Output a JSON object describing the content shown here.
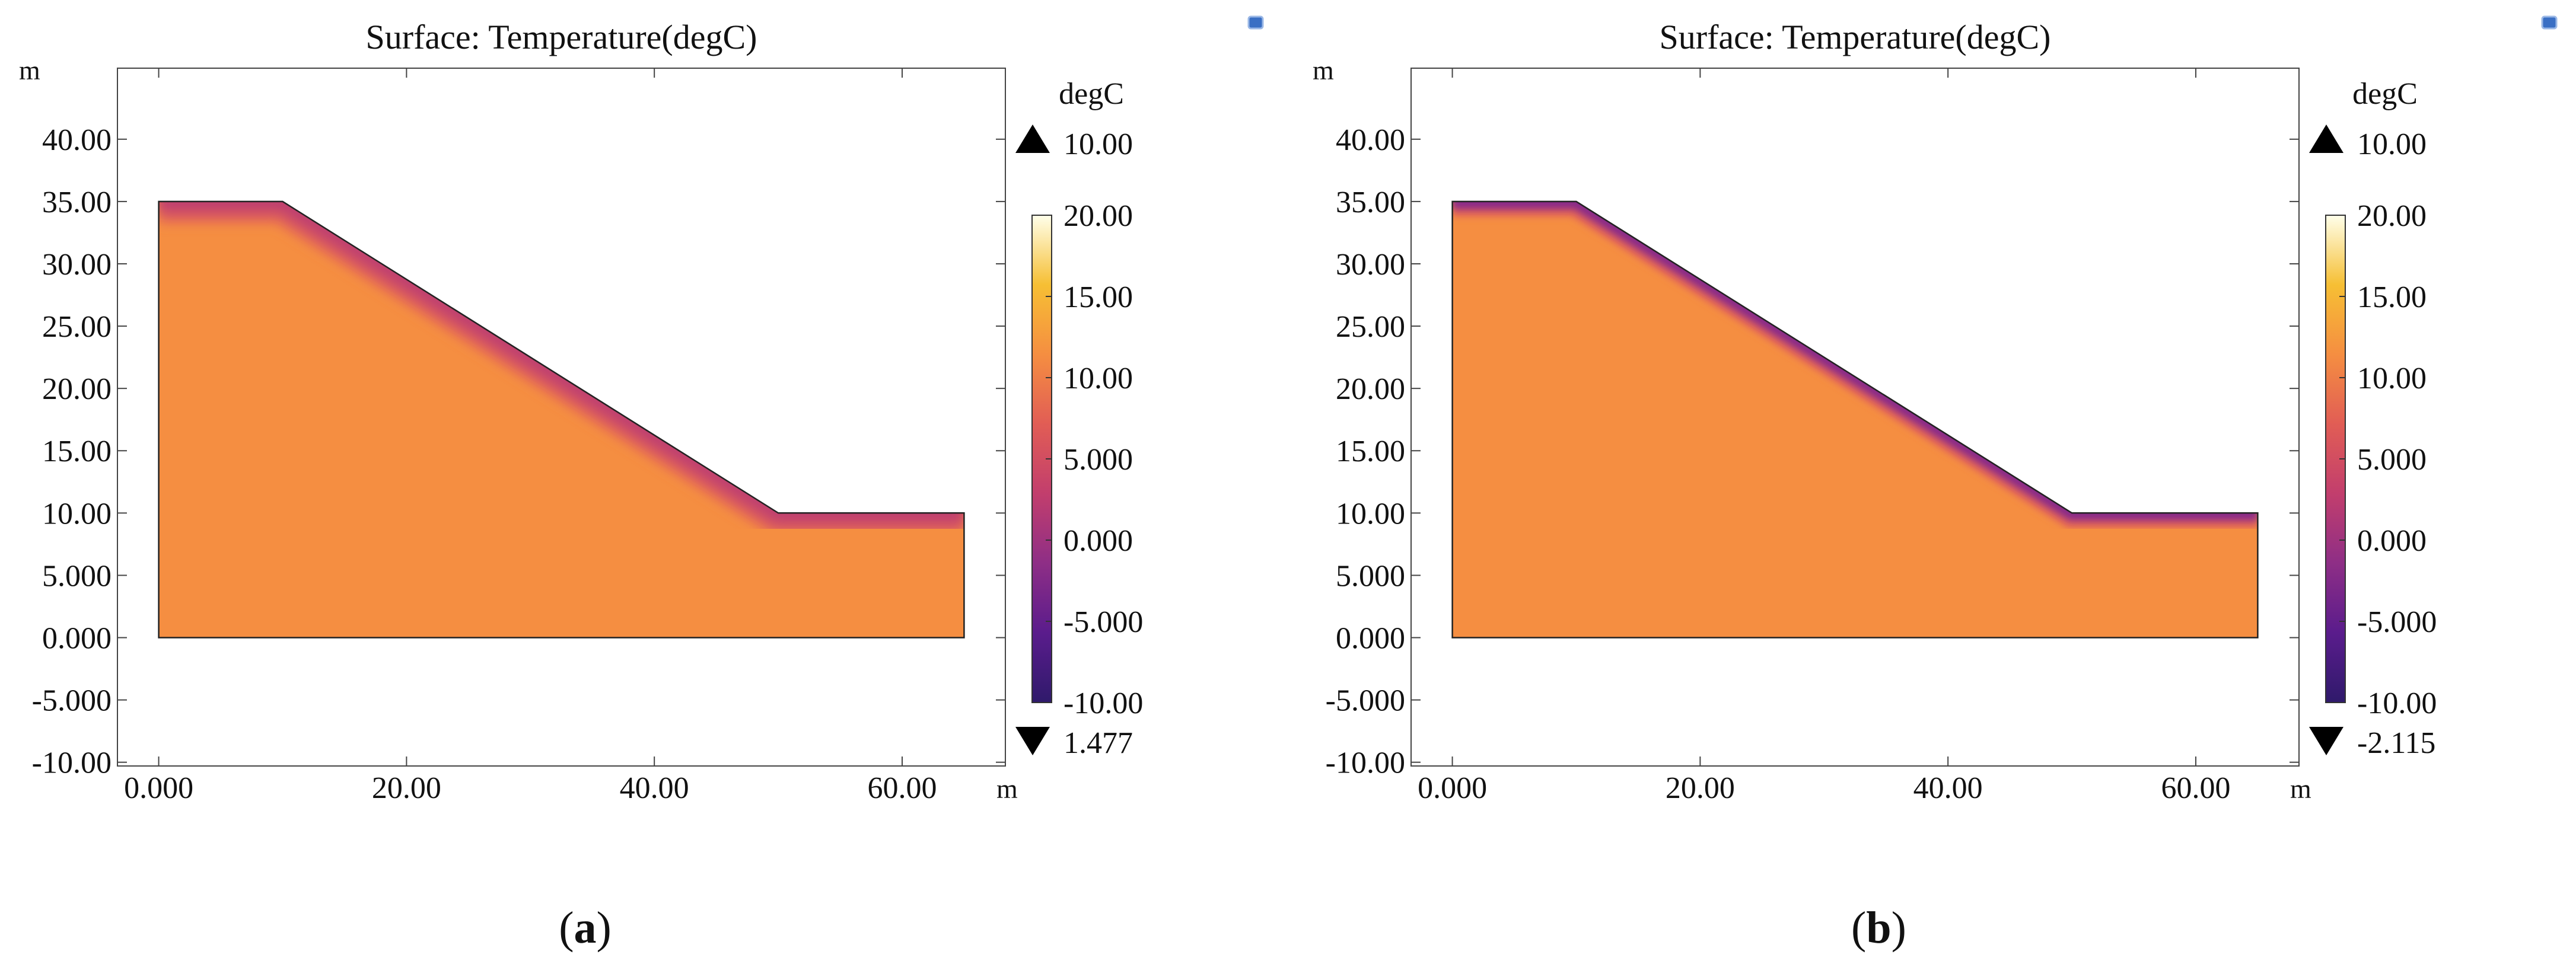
{
  "chart_data": [
    {
      "type": "heatmap",
      "panel_label": "a",
      "title": "Surface: Temperature(degC)",
      "xlabel": "m",
      "ylabel": "m",
      "xlim": [
        -3.33,
        68.33
      ],
      "ylim": [
        -10.3,
        45.7
      ],
      "xticks": [
        "0.000",
        "20.00",
        "40.00",
        "60.00"
      ],
      "xtick_values": [
        0,
        20,
        40,
        60
      ],
      "yticks": [
        "-10.00",
        "-5.000",
        "0.000",
        "5.000",
        "10.00",
        "15.00",
        "20.00",
        "25.00",
        "30.00",
        "35.00",
        "40.00"
      ],
      "ytick_values": [
        -10,
        -5,
        0,
        5,
        10,
        15,
        20,
        25,
        30,
        35,
        40
      ],
      "domain_outline_m": [
        [
          0,
          0
        ],
        [
          65,
          0
        ],
        [
          65,
          10
        ],
        [
          50,
          10
        ],
        [
          10,
          35
        ],
        [
          0,
          35
        ]
      ],
      "interior_temperature_degC": 10,
      "surface_temperature_degC": 1.477,
      "colorbar": {
        "unit": "degC",
        "range": [
          -10,
          20
        ],
        "ticks": [
          "20.00",
          "15.00",
          "10.00",
          "5.000",
          "0.000",
          "-5.000",
          "-10.00"
        ],
        "tick_values": [
          20,
          15,
          10,
          5,
          0,
          -5,
          -10
        ],
        "max_label": "10.00",
        "min_label": "1.477",
        "colors": [
          "#ffffea",
          "#f6bf34",
          "#f58e41",
          "#e15d55",
          "#c23e6d",
          "#8e2e86",
          "#5a1c8c",
          "#2f1a6b"
        ]
      }
    },
    {
      "type": "heatmap",
      "panel_label": "b",
      "title": "Surface: Temperature(degC)",
      "xlabel": "m",
      "ylabel": "m",
      "xlim": [
        -3.33,
        68.33
      ],
      "ylim": [
        -10.3,
        45.7
      ],
      "xticks": [
        "0.000",
        "20.00",
        "40.00",
        "60.00"
      ],
      "xtick_values": [
        0,
        20,
        40,
        60
      ],
      "yticks": [
        "-10.00",
        "-5.000",
        "0.000",
        "5.000",
        "10.00",
        "15.00",
        "20.00",
        "25.00",
        "30.00",
        "35.00",
        "40.00"
      ],
      "ytick_values": [
        -10,
        -5,
        0,
        5,
        10,
        15,
        20,
        25,
        30,
        35,
        40
      ],
      "domain_outline_m": [
        [
          0,
          0
        ],
        [
          65,
          0
        ],
        [
          65,
          10
        ],
        [
          50,
          10
        ],
        [
          10,
          35
        ],
        [
          0,
          35
        ]
      ],
      "interior_temperature_degC": 10,
      "surface_temperature_degC": -2.115,
      "colorbar": {
        "unit": "degC",
        "range": [
          -10,
          20
        ],
        "ticks": [
          "20.00",
          "15.00",
          "10.00",
          "5.000",
          "0.000",
          "-5.000",
          "-10.00"
        ],
        "tick_values": [
          20,
          15,
          10,
          5,
          0,
          -5,
          -10
        ],
        "max_label": "10.00",
        "min_label": "-2.115",
        "colors": [
          "#ffffea",
          "#f6bf34",
          "#f58e41",
          "#e15d55",
          "#c23e6d",
          "#8e2e86",
          "#5a1c8c",
          "#2f1a6b"
        ]
      }
    }
  ]
}
